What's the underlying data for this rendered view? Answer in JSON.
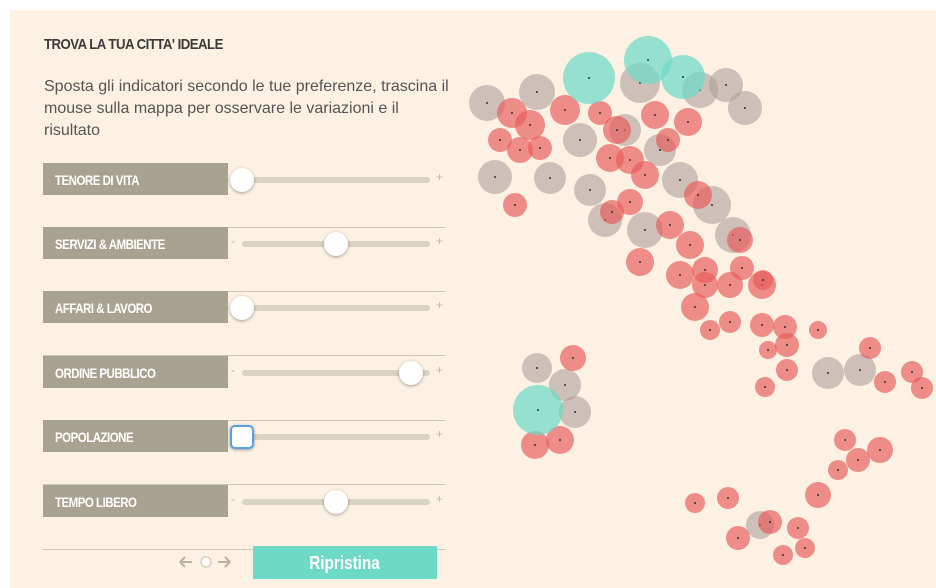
{
  "panel": {
    "title": "TROVA LA TUA CITTA' IDEALE",
    "description": "Sposta gli indicatori secondo le tue preferenze, trascina il mouse sulla mappa per osservare le variazioni e il risultato",
    "sliders": [
      {
        "label": "TENORE DI VITA"
      },
      {
        "label": "SERVIZI & AMBIENTE"
      },
      {
        "label": "AFFARI & LAVORO"
      },
      {
        "label": "ORDINE PUBBLICO"
      },
      {
        "label": "POPOLAZIONE"
      },
      {
        "label": "TEMPO LIBERO"
      }
    ],
    "minus": "-",
    "plus": "+",
    "reset_button": "Ripristina"
  }
}
